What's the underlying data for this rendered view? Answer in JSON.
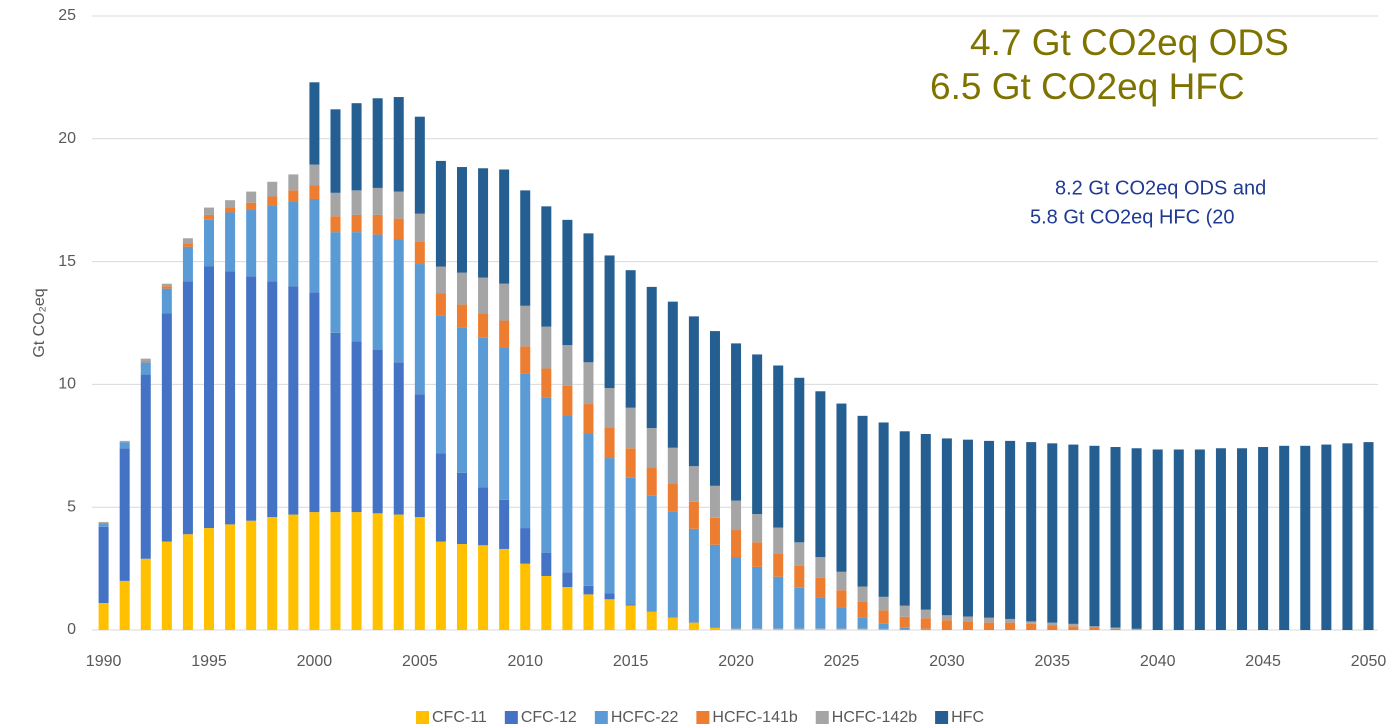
{
  "chart_data": {
    "type": "stacked-bar",
    "y_label": "Gt CO₂eq",
    "annotations": [
      "4.7 Gt CO2eq ODS",
      "6.5 Gt CO2eq HFC",
      "8.2 Gt CO2eq ODS and",
      "5.8 Gt CO2eq HFC (20"
    ],
    "x": [
      1990,
      1991,
      1992,
      1993,
      1994,
      1995,
      1996,
      1997,
      1998,
      1999,
      2000,
      2001,
      2002,
      2003,
      2004,
      2005,
      2006,
      2007,
      2008,
      2009,
      2010,
      2011,
      2012,
      2013,
      2014,
      2015,
      2016,
      2017,
      2018,
      2019,
      2020,
      2021,
      2022,
      2023,
      2024,
      2025,
      2026,
      2027,
      2028,
      2029,
      2030,
      2031,
      2032,
      2033,
      2034,
      2035,
      2036,
      2037,
      2038,
      2039,
      2040,
      2041,
      2042,
      2043,
      2044,
      2045,
      2046,
      2047,
      2048,
      2049,
      2050
    ],
    "xlim": [
      1989.45,
      2050.45
    ],
    "xticks": [
      1990,
      1995,
      2000,
      2005,
      2010,
      2015,
      2020,
      2025,
      2030,
      2035,
      2040,
      2045,
      2050
    ],
    "ylim": [
      0,
      25
    ],
    "yticks": [
      0,
      5,
      10,
      15,
      20,
      25
    ],
    "grid": true,
    "legend": "bottom",
    "series": [
      {
        "name": "CFC-11",
        "color": "#ffc000",
        "values": [
          1.1,
          2.0,
          2.9,
          3.6,
          3.9,
          4.15,
          4.3,
          4.45,
          4.6,
          4.7,
          4.8,
          4.8,
          4.8,
          4.75,
          4.7,
          4.6,
          3.6,
          3.5,
          3.45,
          3.3,
          2.7,
          2.2,
          1.75,
          1.45,
          1.25,
          1.0,
          0.75,
          0.5,
          0.3,
          0.1,
          0.05,
          0.05,
          0.05,
          0.05,
          0.05,
          0.05,
          0.05,
          0.03,
          0.02,
          0.01,
          0,
          0,
          0,
          0,
          0,
          0,
          0,
          0,
          0,
          0,
          0,
          0,
          0,
          0,
          0,
          0,
          0,
          0,
          0,
          0,
          0
        ]
      },
      {
        "name": "CFC-12",
        "color": "#4472c4",
        "values": [
          3.1,
          5.4,
          7.5,
          9.3,
          10.3,
          10.65,
          10.3,
          9.95,
          9.6,
          9.3,
          8.95,
          7.3,
          6.95,
          6.65,
          6.2,
          5.0,
          3.6,
          2.9,
          2.35,
          2.0,
          1.45,
          0.95,
          0.6,
          0.35,
          0.25,
          0.05,
          0.02,
          0.02,
          0.02,
          0.02,
          0.02,
          0.02,
          0.02,
          0.02,
          0.02,
          0.02,
          0.02,
          0.02,
          0.02,
          0.02,
          0,
          0,
          0,
          0,
          0,
          0,
          0,
          0,
          0,
          0,
          0,
          0,
          0,
          0,
          0,
          0,
          0,
          0,
          0,
          0,
          0
        ]
      },
      {
        "name": "HCFC-22",
        "color": "#5b9bd5",
        "values": [
          0.15,
          0.25,
          0.5,
          1.0,
          1.4,
          1.9,
          2.4,
          2.7,
          3.1,
          3.45,
          3.8,
          4.1,
          4.45,
          4.7,
          5.0,
          5.3,
          5.6,
          5.9,
          6.1,
          6.2,
          6.3,
          6.3,
          6.4,
          6.2,
          5.5,
          5.15,
          4.7,
          4.3,
          3.8,
          3.35,
          2.9,
          2.5,
          2.1,
          1.65,
          1.25,
          0.85,
          0.45,
          0.2,
          0.05,
          0.02,
          0,
          0,
          0,
          0,
          0,
          0,
          0,
          0,
          0,
          0,
          0,
          0,
          0,
          0,
          0,
          0,
          0,
          0,
          0,
          0,
          0
        ]
      },
      {
        "name": "HCFC-141b",
        "color": "#ed7d31",
        "values": [
          0.02,
          0.02,
          0.05,
          0.1,
          0.15,
          0.2,
          0.2,
          0.3,
          0.35,
          0.45,
          0.55,
          0.65,
          0.7,
          0.8,
          0.85,
          0.9,
          0.9,
          0.95,
          1.0,
          1.1,
          1.1,
          1.2,
          1.2,
          1.2,
          1.25,
          1.2,
          1.15,
          1.15,
          1.1,
          1.1,
          1.1,
          1.0,
          0.95,
          0.9,
          0.8,
          0.7,
          0.65,
          0.55,
          0.45,
          0.43,
          0.4,
          0.35,
          0.3,
          0.3,
          0.25,
          0.2,
          0.15,
          0.1,
          0.05,
          0,
          0,
          0,
          0,
          0,
          0,
          0,
          0,
          0,
          0,
          0,
          0
        ]
      },
      {
        "name": "HCFC-142b",
        "color": "#a5a5a5",
        "values": [
          0.03,
          0.03,
          0.1,
          0.1,
          0.2,
          0.3,
          0.3,
          0.45,
          0.6,
          0.65,
          0.85,
          0.95,
          1.0,
          1.1,
          1.1,
          1.15,
          1.1,
          1.3,
          1.45,
          1.5,
          1.65,
          1.7,
          1.65,
          1.7,
          1.6,
          1.65,
          1.6,
          1.45,
          1.45,
          1.3,
          1.2,
          1.15,
          1.05,
          0.95,
          0.85,
          0.75,
          0.6,
          0.55,
          0.45,
          0.35,
          0.2,
          0.2,
          0.2,
          0.15,
          0.1,
          0.1,
          0.1,
          0.05,
          0.05,
          0.05,
          0,
          0,
          0,
          0,
          0,
          0,
          0,
          0,
          0,
          0,
          0
        ]
      },
      {
        "name": "HFC",
        "color": "#255e91",
        "values": [
          0,
          0,
          0,
          0,
          0,
          0,
          0,
          0,
          0,
          0,
          3.35,
          3.4,
          3.55,
          3.65,
          3.85,
          3.95,
          4.3,
          4.3,
          4.45,
          4.65,
          4.7,
          4.9,
          5.1,
          5.25,
          5.4,
          5.6,
          5.75,
          5.95,
          6.1,
          6.3,
          6.4,
          6.5,
          6.6,
          6.7,
          6.75,
          6.85,
          6.95,
          7.1,
          7.1,
          7.15,
          7.2,
          7.2,
          7.2,
          7.25,
          7.3,
          7.3,
          7.3,
          7.35,
          7.35,
          7.35,
          7.35,
          7.35,
          7.35,
          7.4,
          7.4,
          7.45,
          7.5,
          7.5,
          7.55,
          7.6,
          7.65
        ]
      }
    ]
  }
}
